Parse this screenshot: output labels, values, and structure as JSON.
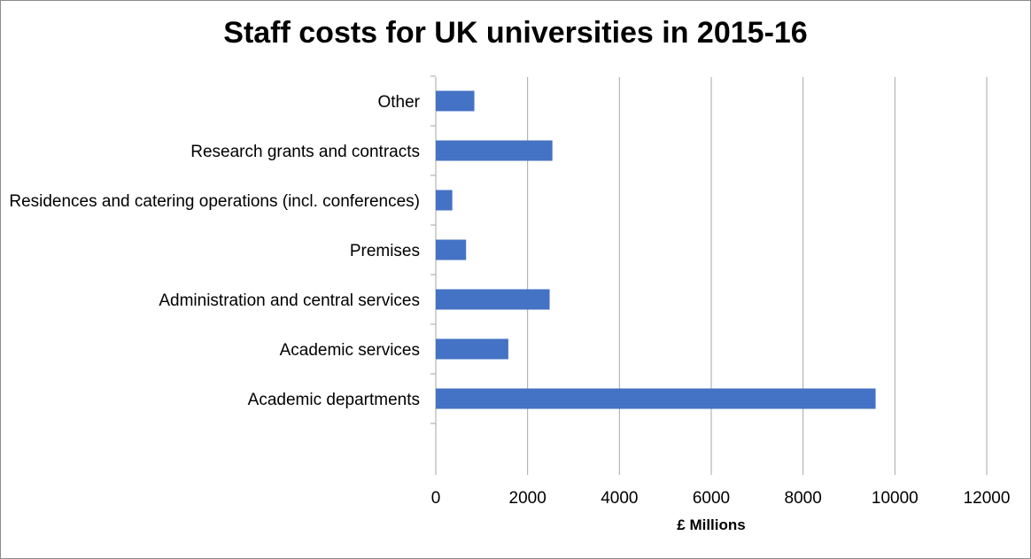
{
  "chart_data": {
    "type": "bar",
    "orientation": "horizontal",
    "title": "Staff costs for UK universities in 2015-16",
    "xlabel": "£ Millions",
    "ylabel": "",
    "categories": [
      "Academic departments",
      "Academic services",
      "Administration and central services",
      "Premises",
      "Residences and catering operations (incl. conferences)",
      "Research grants and contracts",
      "Other"
    ],
    "values": [
      9580,
      1580,
      2480,
      660,
      360,
      2540,
      840
    ],
    "xlim": [
      0,
      12000
    ],
    "xticks": [
      "0",
      "2000",
      "4000",
      "6000",
      "8000",
      "10000",
      "12000"
    ],
    "grid": "vertical major gridlines",
    "legend": "none",
    "colors": {
      "bar": "#4472c4",
      "grid": "#a6a6a6",
      "axis": "#a6a6a6",
      "border": "#8c8c8c"
    }
  }
}
